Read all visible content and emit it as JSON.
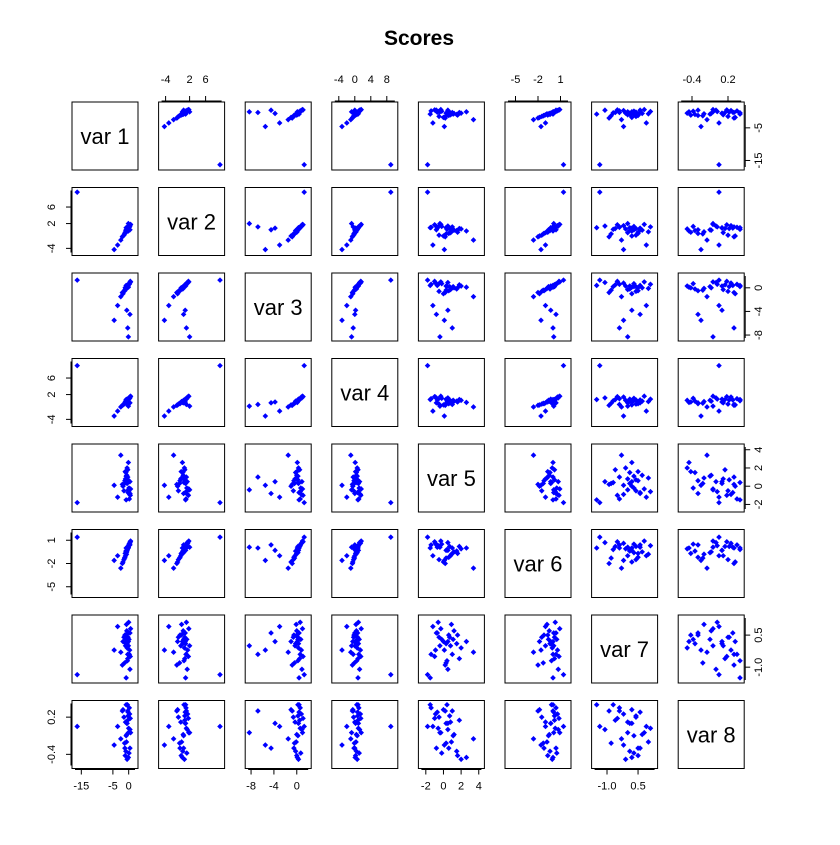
{
  "chart_data": {
    "type": "scatter",
    "kind": "scatterplot-matrix",
    "title": "Scores",
    "marker_color": "#0000ff",
    "variables": [
      "var 1",
      "var 2",
      "var 3",
      "var 4",
      "var 5",
      "var 6",
      "var 7",
      "var 8"
    ],
    "ranges": [
      [
        -17,
        2
      ],
      [
        -5,
        10
      ],
      [
        -8.5,
        2
      ],
      [
        -5,
        10
      ],
      [
        -2.5,
        4.3
      ],
      [
        -6,
        2
      ],
      [
        -1.6,
        1.3
      ],
      [
        -0.58,
        0.42
      ]
    ],
    "ticks": [
      {
        "values": [
          -15,
          -5,
          0
        ],
        "labels": [
          "-15",
          "-5",
          "0"
        ]
      },
      {
        "values": [
          -4,
          2,
          6
        ],
        "labels": [
          "-4",
          "2",
          "6"
        ]
      },
      {
        "values": [
          -8,
          -4,
          0
        ],
        "labels": [
          "-8",
          "-4",
          "0"
        ]
      },
      {
        "values": [
          -4,
          2,
          6
        ],
        "labels": [
          "-4",
          "2",
          "6"
        ]
      },
      {
        "values": [
          -2,
          0,
          2,
          4
        ],
        "labels": [
          "-2",
          "0",
          "2",
          "4"
        ]
      },
      {
        "values": [
          -5,
          -2,
          1
        ],
        "labels": [
          "-5",
          "-2",
          "1"
        ]
      },
      {
        "values": [
          -1.0,
          0.5
        ],
        "labels": [
          "-1.0",
          "0.5"
        ]
      },
      {
        "values": [
          -0.4,
          0.2
        ],
        "labels": [
          "-0.4",
          "0.2"
        ]
      }
    ],
    "top_axis_ticks": [
      {
        "values": [
          -4,
          2,
          6
        ],
        "labels": [
          "-4",
          "2",
          "6"
        ]
      },
      {
        "values": [
          -4,
          0,
          4,
          8
        ],
        "labels": [
          "-4",
          "0",
          "4",
          "8"
        ]
      },
      {
        "values": [
          -5,
          -2,
          1
        ],
        "labels": [
          "-5",
          "-2",
          "1"
        ]
      },
      {
        "values": [
          -0.4,
          0.2
        ],
        "labels": [
          "-0.4",
          "0.2"
        ]
      }
    ],
    "bottom_axis_ticks": [
      {
        "values": [
          -15,
          -5,
          0
        ],
        "labels": [
          "-15",
          "-5",
          "0"
        ]
      },
      {
        "values": [
          -8,
          -4,
          0
        ],
        "labels": [
          "-8",
          "-4",
          "0"
        ]
      },
      {
        "values": [
          -2,
          0,
          2,
          4
        ],
        "labels": [
          "-2",
          "0",
          "2",
          "4"
        ]
      },
      {
        "values": [
          -1.0,
          0.5
        ],
        "labels": [
          "-1.0",
          "0.5"
        ]
      }
    ],
    "left_axis_ticks": [
      {
        "values": [
          -4,
          2,
          6
        ],
        "labels": [
          "-4",
          "2",
          "6"
        ]
      },
      {
        "values": [
          -4,
          2,
          6
        ],
        "labels": [
          "-4",
          "2",
          "6"
        ]
      },
      {
        "values": [
          -5,
          -2,
          1
        ],
        "labels": [
          "-5",
          "-2",
          "1"
        ]
      },
      {
        "values": [
          -0.4,
          0.2
        ],
        "labels": [
          "-0.4",
          "0.2"
        ]
      }
    ],
    "right_axis_ticks": [
      {
        "values": [
          -15,
          -5
        ],
        "labels": [
          "-15",
          "-5"
        ]
      },
      {
        "values": [
          -8,
          -4,
          0
        ],
        "labels": [
          "-8",
          "-4",
          "0"
        ]
      },
      {
        "values": [
          -2,
          0,
          2,
          4
        ],
        "labels": [
          "-2",
          "0",
          "2",
          "4"
        ]
      },
      {
        "values": [
          -1.0,
          0.5
        ],
        "labels": [
          "-1.0",
          "0.5"
        ]
      }
    ],
    "observations": [
      [
        -16.3,
        9.6,
        1.3,
        9.0,
        -1.8,
        1.4,
        -1.35,
        0.05
      ],
      [
        -0.5,
        1.0,
        0.3,
        0.9,
        0.3,
        -0.3,
        0.1,
        0.1
      ],
      [
        -0.8,
        0.5,
        0.2,
        0.6,
        1.1,
        -0.6,
        0.3,
        -0.1
      ],
      [
        0.3,
        1.5,
        0.8,
        1.4,
        -0.9,
        0.6,
        -0.2,
        0.25
      ],
      [
        -1.2,
        -0.4,
        -0.5,
        -0.2,
        0.6,
        -1.2,
        0.5,
        -0.3
      ],
      [
        -0.3,
        0.8,
        0.5,
        0.8,
        1.8,
        0.2,
        -0.6,
        0.15
      ],
      [
        0.6,
        1.8,
        1.0,
        1.6,
        -0.3,
        0.9,
        0.8,
        -0.05
      ],
      [
        -2.0,
        -1.2,
        -0.8,
        -0.6,
        0.2,
        -2.0,
        -0.9,
        0.3
      ],
      [
        -0.1,
        0.2,
        0.1,
        0.1,
        2.6,
        0.0,
        0.2,
        -0.45
      ],
      [
        0.2,
        1.1,
        0.6,
        1.0,
        -1.4,
        0.4,
        -0.4,
        0.35
      ],
      [
        -0.7,
        0.0,
        -0.1,
        0.3,
        0.9,
        -0.8,
        1.0,
        -0.2
      ],
      [
        -1.5,
        -0.8,
        -0.6,
        -0.3,
        -0.5,
        -1.5,
        0.4,
        0.2
      ],
      [
        0.4,
        1.4,
        0.9,
        1.2,
        0.5,
        0.7,
        -1.1,
        0.0
      ],
      [
        -0.9,
        0.3,
        -0.2,
        0.4,
        1.5,
        -0.4,
        0.1,
        -0.35
      ],
      [
        -0.2,
        0.9,
        0.4,
        0.7,
        -0.7,
        0.1,
        0.6,
        0.28
      ],
      [
        -2.5,
        -2.0,
        -1.5,
        -1.0,
        3.4,
        -2.6,
        -0.3,
        -0.15
      ],
      [
        -3.5,
        -3.2,
        -3.0,
        -2.0,
        -1.2,
        -1.0,
        0.9,
        0.05
      ],
      [
        -4.6,
        -4.3,
        -5.5,
        -3.2,
        0.1,
        -1.6,
        -0.2,
        -0.25
      ],
      [
        -0.4,
        0.6,
        0.2,
        0.5,
        0.4,
        -0.2,
        -0.7,
        0.4
      ],
      [
        0.1,
        1.3,
        0.7,
        1.1,
        -0.2,
        0.5,
        0.3,
        -0.38
      ],
      [
        -1.0,
        -0.2,
        -0.3,
        0.0,
        0.8,
        -1.0,
        0.0,
        0.12
      ],
      [
        -0.6,
        0.4,
        0.0,
        0.4,
        1.2,
        -0.5,
        0.7,
        -0.08
      ],
      [
        0.5,
        1.7,
        1.1,
        1.5,
        -1.0,
        0.8,
        -0.5,
        0.18
      ],
      [
        -1.8,
        -1.0,
        -1.0,
        -0.5,
        0.0,
        -1.8,
        0.2,
        0.32
      ],
      [
        -0.5,
        0.7,
        0.3,
        0.6,
        2.0,
        -0.1,
        -0.1,
        -0.48
      ],
      [
        0.0,
        1.2,
        0.6,
        0.9,
        -0.6,
        0.3,
        1.1,
        0.02
      ],
      [
        -1.3,
        -0.5,
        -0.4,
        -0.1,
        0.3,
        -1.3,
        -0.8,
        -0.22
      ],
      [
        -0.2,
        0.8,
        0.2,
        0.7,
        0.7,
        0.2,
        0.4,
        0.22
      ],
      [
        -0.1,
        2.0,
        -8.3,
        -0.8,
        -0.4,
        0.1,
        0.0,
        -0.05
      ],
      [
        -0.3,
        1.2,
        -6.8,
        -0.4,
        1.0,
        0.0,
        -0.4,
        0.3
      ],
      [
        0.4,
        0.5,
        -4.5,
        0.0,
        -0.8,
        0.4,
        0.6,
        -0.3
      ],
      [
        -0.6,
        0.9,
        -3.8,
        0.2,
        0.5,
        -0.3,
        0.2,
        0.1
      ],
      [
        -0.8,
        1.0,
        0.4,
        0.8,
        -1.5,
        0.0,
        -1.5,
        0.4
      ],
      [
        -1.1,
        -0.1,
        0.0,
        0.2,
        1.6,
        -0.7,
        0.5,
        -0.42
      ]
    ]
  }
}
